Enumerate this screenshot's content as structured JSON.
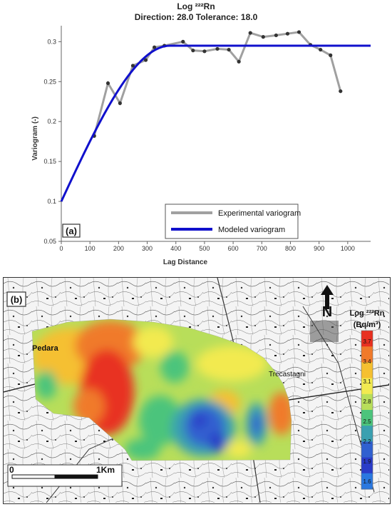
{
  "panel_a": {
    "title_line1": "Log ²²²Rn",
    "title_line2": "Direction: 28.0   Tolerance: 18.0",
    "panel_label": "(a)"
  },
  "chart_data": {
    "type": "line",
    "xlabel": "Lag Distance",
    "ylabel": "Variogram (-)",
    "xlim": [
      0,
      1080
    ],
    "ylim": [
      0.05,
      0.32
    ],
    "x_ticks": [
      0,
      100,
      200,
      300,
      400,
      500,
      600,
      700,
      800,
      900,
      1000
    ],
    "y_ticks": [
      0.05,
      0.1,
      0.15,
      0.2,
      0.25,
      0.3
    ],
    "y_tick_labels": [
      "0.05",
      "0.1",
      "0.15",
      "0.2",
      "0.25",
      "0.3"
    ],
    "legend_position": "bottom-right",
    "series": [
      {
        "name": "Experimental variogram",
        "color": "#a0a0a0",
        "x": [
          115,
          163,
          205,
          250,
          295,
          325,
          360,
          425,
          460,
          500,
          545,
          585,
          620,
          660,
          705,
          750,
          790,
          830,
          870,
          905,
          940,
          975
        ],
        "y": [
          0.182,
          0.248,
          0.223,
          0.27,
          0.277,
          0.293,
          0.295,
          0.3,
          0.289,
          0.288,
          0.291,
          0.29,
          0.275,
          0.311,
          0.306,
          0.308,
          0.31,
          0.312,
          0.296,
          0.29,
          0.283,
          0.238
        ]
      },
      {
        "name": "Modeled variogram",
        "color": "#1010cc",
        "model": "spherical",
        "nugget": 0.1,
        "sill": 0.295,
        "range": 380,
        "x_max": 1080
      }
    ]
  },
  "panel_b": {
    "panel_label": "(b)",
    "place_labels": [
      "Pedara",
      "Trecastagni"
    ],
    "scale_start": "0",
    "scale_end": "1Km",
    "north_label": "N",
    "legend_title_line1": "Log ²²²Rn",
    "legend_title_line2": "(Bq/m³)",
    "colorbar_ticks": [
      "3.7",
      "3.4",
      "3.1",
      "2.8",
      "2.5",
      "2.2",
      "1.9",
      "1.6"
    ],
    "colorbar_colors": [
      "#e83020",
      "#f07a2a",
      "#f5c030",
      "#f2ea50",
      "#b8de5a",
      "#4cc47c",
      "#3aa0b0",
      "#3060d0",
      "#2a3cc8",
      "#2a78e0"
    ]
  }
}
